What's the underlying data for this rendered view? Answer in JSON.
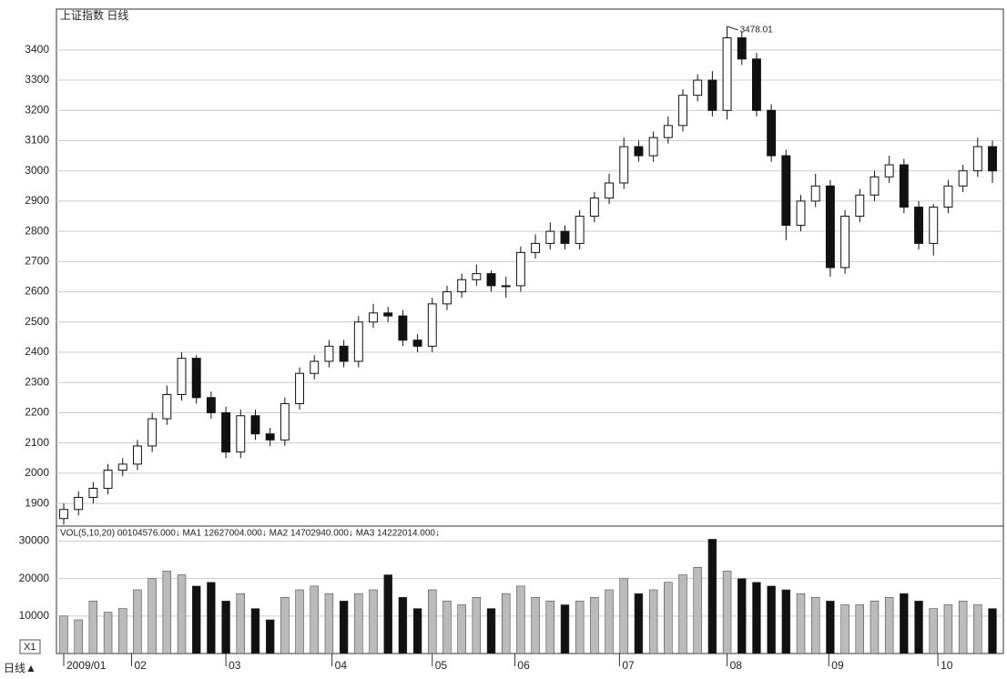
{
  "chart_data": {
    "type": "candlestick",
    "title": "上证指数 日线",
    "indicator": "VOL(5,10,20) 00104576.000↓ MA1 12627004.000↓ MA2 14702940.000↓ MA3 14222014.000↓",
    "zoom_label": "X1",
    "period_label": "日线▲",
    "open": [
      1850,
      1880,
      1920,
      1950,
      2010,
      2030,
      2090,
      2180,
      2260,
      2380,
      2250,
      2200,
      2070,
      2190,
      2130,
      2110,
      2230,
      2330,
      2370,
      2420,
      2370,
      2500,
      2530,
      2520,
      2440,
      2420,
      2560,
      2600,
      2640,
      2660,
      2620,
      2620,
      2730,
      2760,
      2800,
      2760,
      2850,
      2910,
      2960,
      3080,
      3050,
      3110,
      3150,
      3250,
      3300,
      3200,
      3440,
      3370,
      3200,
      3050,
      2820,
      2900,
      2950,
      2680,
      2850,
      2920,
      2980,
      3020,
      2880,
      2760,
      2880,
      2950,
      3000,
      3080
    ],
    "high": [
      1900,
      1940,
      1970,
      2030,
      2050,
      2110,
      2200,
      2290,
      2400,
      2390,
      2270,
      2220,
      2210,
      2210,
      2150,
      2250,
      2350,
      2390,
      2440,
      2440,
      2520,
      2560,
      2550,
      2540,
      2460,
      2580,
      2620,
      2660,
      2690,
      2670,
      2650,
      2750,
      2790,
      2830,
      2820,
      2870,
      2930,
      2990,
      3110,
      3100,
      3130,
      3180,
      3270,
      3320,
      3330,
      3478.01,
      3460,
      3390,
      3220,
      3070,
      2920,
      2990,
      2970,
      2870,
      2940,
      3000,
      3050,
      3040,
      2900,
      2890,
      2970,
      3020,
      3110,
      3100
    ],
    "low": [
      1830,
      1860,
      1900,
      1930,
      1990,
      2010,
      2070,
      2160,
      2240,
      2230,
      2180,
      2050,
      2050,
      2110,
      2090,
      2090,
      2210,
      2310,
      2350,
      2350,
      2350,
      2480,
      2500,
      2420,
      2400,
      2400,
      2540,
      2580,
      2620,
      2600,
      2580,
      2600,
      2710,
      2740,
      2740,
      2740,
      2830,
      2890,
      2940,
      3030,
      3030,
      3090,
      3130,
      3230,
      3180,
      3170,
      3350,
      3180,
      3030,
      2770,
      2800,
      2880,
      2650,
      2660,
      2830,
      2900,
      2960,
      2860,
      2740,
      2720,
      2860,
      2930,
      2980,
      2960
    ],
    "close": [
      1880,
      1920,
      1950,
      2010,
      2030,
      2090,
      2180,
      2260,
      2380,
      2250,
      2200,
      2070,
      2190,
      2130,
      2110,
      2230,
      2330,
      2370,
      2420,
      2370,
      2500,
      2530,
      2520,
      2440,
      2420,
      2560,
      2600,
      2640,
      2660,
      2620,
      2620,
      2730,
      2760,
      2800,
      2760,
      2850,
      2910,
      2960,
      3080,
      3050,
      3110,
      3150,
      3250,
      3300,
      3200,
      3440,
      3370,
      3200,
      3050,
      2820,
      2900,
      2950,
      2680,
      2850,
      2920,
      2980,
      3020,
      2880,
      2760,
      2880,
      2950,
      3000,
      3080,
      3000
    ],
    "volume": [
      10000,
      9000,
      14000,
      11000,
      12000,
      17000,
      20000,
      22000,
      21000,
      18000,
      19000,
      14000,
      16000,
      12000,
      9000,
      15000,
      17000,
      18000,
      16000,
      14000,
      16000,
      17000,
      21000,
      15000,
      12000,
      17000,
      14000,
      13000,
      15000,
      12000,
      16000,
      18000,
      15000,
      14000,
      13000,
      14000,
      15000,
      17000,
      20000,
      16000,
      17000,
      19000,
      21000,
      23000,
      30500,
      22000,
      20000,
      19000,
      18000,
      17000,
      16000,
      15000,
      14000,
      13000,
      13000,
      14000,
      15000,
      16000,
      14000,
      12000,
      13000,
      14000,
      13000,
      12000
    ],
    "ylim": [
      1825,
      3535
    ],
    "yticks": [
      1900,
      2000,
      2100,
      2200,
      2300,
      2400,
      2500,
      2600,
      2700,
      2800,
      2900,
      3000,
      3100,
      3200,
      3300,
      3400
    ],
    "vol_ylim": [
      0,
      34000
    ],
    "vol_yticks": [
      10000,
      20000,
      30000
    ],
    "xticks": [
      {
        "value": 0,
        "label": "2009/01"
      },
      {
        "value": 4.6,
        "label": "02"
      },
      {
        "value": 11,
        "label": "03"
      },
      {
        "value": 18.2,
        "label": "04"
      },
      {
        "value": 25,
        "label": "05"
      },
      {
        "value": 30.6,
        "label": "06"
      },
      {
        "value": 37.7,
        "label": "07"
      },
      {
        "value": 45,
        "label": "08"
      },
      {
        "value": 51.9,
        "label": "09"
      },
      {
        "value": 59.3,
        "label": "10"
      }
    ],
    "grid": true
  }
}
